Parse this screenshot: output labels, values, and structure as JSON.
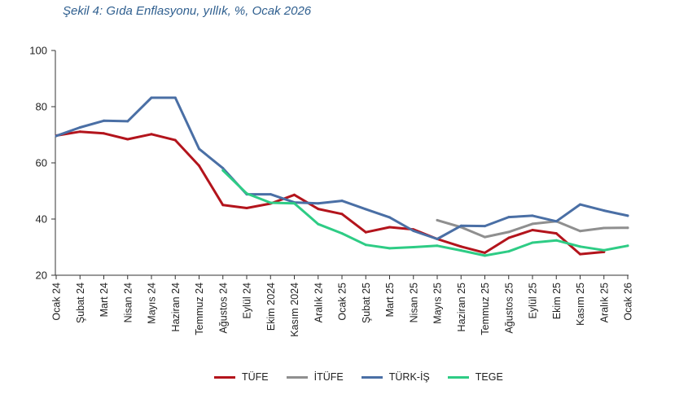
{
  "title": "Şekil 4: Gıda Enflasyonu, yıllık, %, Ocak 2026",
  "chart_data": {
    "type": "line",
    "title": "Şekil 4: Gıda Enflasyonu, yıllık, %, Ocak 2026",
    "xlabel": "",
    "ylabel": "",
    "ylim": [
      20,
      100
    ],
    "yticks": [
      20,
      40,
      60,
      80,
      100
    ],
    "grid": false,
    "legend": "bottom",
    "categories": [
      "Ocak 24",
      "Şubat 24",
      "Mart 24",
      "Nisan 24",
      "Mayıs 24",
      "Haziran 24",
      "Temmuz 24",
      "Ağustos 24",
      "Eylül 24",
      "Ekim 2024",
      "Kasım 2024",
      "Aralık 24",
      "Ocak 25",
      "Şubat 25",
      "Mart 25",
      "Nisan 25",
      "Mayıs 25",
      "Haziran 25",
      "Temmuz 25",
      "Ağustos 25",
      "Eylül 25",
      "Ekim 25",
      "Kasım 25",
      "Aralık 25",
      "Ocak 26"
    ],
    "series": [
      {
        "name": "TÜFE",
        "color": "#b3141c",
        "values": [
          69.7,
          71.1,
          70.5,
          68.4,
          70.2,
          68.1,
          59.0,
          45.0,
          43.9,
          45.5,
          48.6,
          43.6,
          41.8,
          35.3,
          37.1,
          36.3,
          32.9,
          30.2,
          28.0,
          33.3,
          36.1,
          34.9,
          27.5,
          28.3,
          null
        ]
      },
      {
        "name": "İTÜFE",
        "color": "#8f8f8f",
        "values": [
          null,
          null,
          null,
          null,
          null,
          null,
          null,
          null,
          null,
          null,
          null,
          null,
          null,
          null,
          null,
          null,
          39.6,
          37.1,
          33.6,
          35.4,
          38.3,
          39.2,
          35.7,
          36.8,
          36.9
        ]
      },
      {
        "name": "TÜRK-İŞ",
        "color": "#4a6fa5",
        "values": [
          69.6,
          72.6,
          75.0,
          74.8,
          83.2,
          83.2,
          65.0,
          58.1,
          48.8,
          48.8,
          45.9,
          45.6,
          46.5,
          43.5,
          40.6,
          35.8,
          32.9,
          37.6,
          37.5,
          40.7,
          41.2,
          39.2,
          45.2,
          43.0,
          41.2
        ]
      },
      {
        "name": "TEGE",
        "color": "#2ecc85",
        "values": [
          null,
          null,
          null,
          null,
          null,
          null,
          null,
          57.3,
          49.1,
          45.8,
          45.6,
          38.2,
          34.9,
          30.8,
          29.6,
          30.0,
          30.5,
          28.8,
          27.0,
          28.5,
          31.6,
          32.4,
          30.2,
          28.9,
          30.5
        ]
      }
    ]
  }
}
